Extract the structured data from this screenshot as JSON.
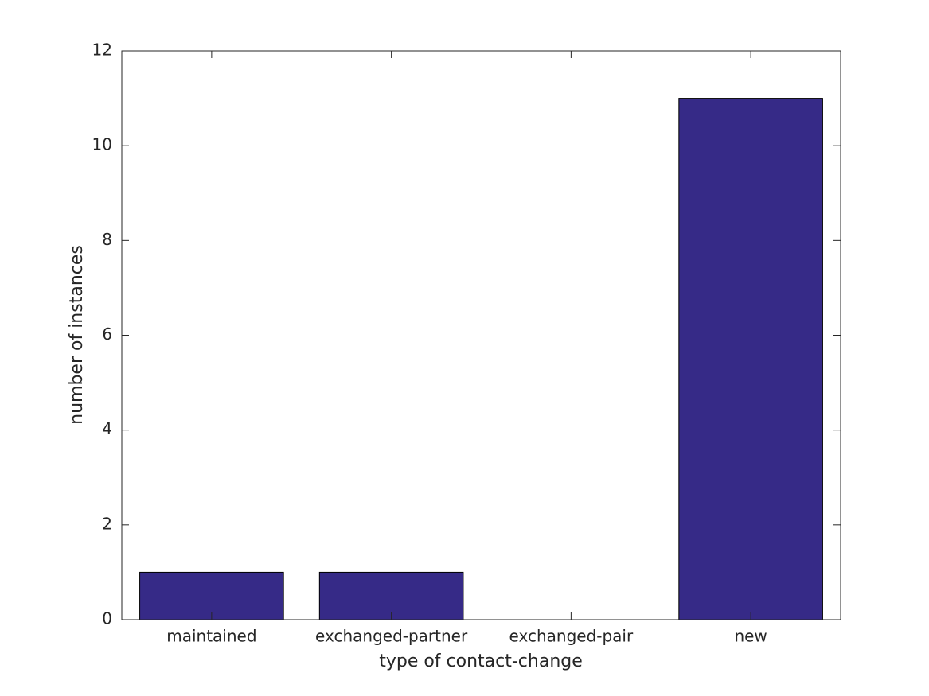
{
  "chart_data": {
    "type": "bar",
    "xlabel": "type of contact-change",
    "ylabel": "number of instances",
    "categories": [
      "maintained",
      "exchanged-partner",
      "exchanged-pair",
      "new"
    ],
    "values": [
      1,
      1,
      0,
      11
    ],
    "color": "#362a87",
    "ylim": [
      0,
      12
    ],
    "yticks": [
      0,
      2,
      4,
      6,
      8,
      10,
      12
    ],
    "grid": false
  }
}
